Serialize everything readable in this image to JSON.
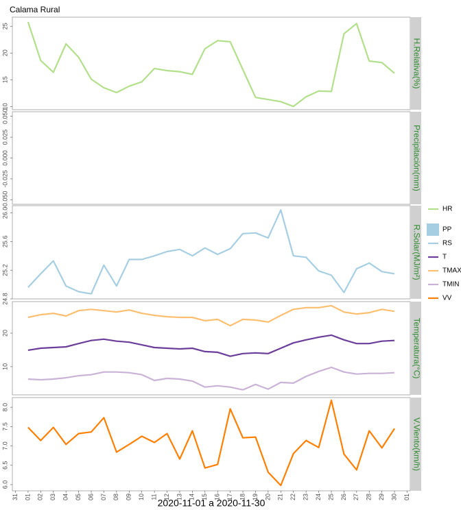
{
  "chart_data": [
    {
      "type": "line",
      "title": "Calama Rural",
      "ylabel": "H.Relativa(%)",
      "ylim": [
        9.4,
        26.7
      ],
      "yticks": [
        10,
        15,
        20,
        25
      ],
      "series": [
        {
          "name": "HR",
          "color": "#b2df8a",
          "values": [
            null,
            25.8,
            18.6,
            16.4,
            21.7,
            19.2,
            15.1,
            13.5,
            12.6,
            13.8,
            14.6,
            17.1,
            16.7,
            16.5,
            16.0,
            20.8,
            22.3,
            22.1,
            16.9,
            11.7,
            11.3,
            10.9,
            10.0,
            11.8,
            12.9,
            12.8,
            23.6,
            25.5,
            18.5,
            18.2,
            16.2,
            null
          ]
        }
      ]
    },
    {
      "type": "bar",
      "ylabel": "Precipitación(mm)",
      "ylim": [
        -0.0555,
        0.0555
      ],
      "yticks": [
        {
          "value": -0.05,
          "label": "-0.050"
        },
        -0.025,
        {
          "value": 0,
          "label": "0.000"
        },
        0.025,
        {
          "value": 0.05,
          "label": "0.050"
        }
      ],
      "series": [
        {
          "name": "PP",
          "color": "#a6cee3",
          "values": [
            null,
            null,
            null,
            null,
            null,
            null,
            null,
            null,
            null,
            null,
            null,
            null,
            null,
            null,
            null,
            null,
            null,
            null,
            null,
            null,
            null,
            null,
            null,
            null,
            null,
            null,
            null,
            null,
            null,
            null,
            null,
            null
          ]
        }
      ]
    },
    {
      "type": "line",
      "ylabel": "R.Solar(MJ/m²)",
      "ylim": [
        24.8,
        26.1
      ],
      "yticks": [
        24.8,
        25.2,
        25.6,
        {
          "value": 26,
          "label": "26.0"
        }
      ],
      "series": [
        {
          "name": "RS",
          "color": "#a6cee3",
          "values": [
            null,
            24.96,
            25.15,
            25.33,
            24.98,
            24.9,
            24.87,
            25.27,
            24.98,
            25.35,
            25.35,
            25.4,
            25.46,
            25.49,
            25.4,
            25.51,
            25.42,
            25.5,
            25.71,
            25.72,
            25.65,
            26.04,
            25.4,
            25.38,
            25.19,
            25.13,
            24.89,
            25.22,
            25.3,
            25.18,
            25.15,
            null
          ]
        }
      ]
    },
    {
      "type": "line",
      "ylabel": "Temperatura(°C)",
      "ylim": [
        1.6,
        29.4
      ],
      "yticks": [
        10,
        20
      ],
      "series": [
        {
          "name": "T",
          "color": "#6a3d9a",
          "values": [
            null,
            14.9,
            15.5,
            15.7,
            15.9,
            16.9,
            17.8,
            18.2,
            17.6,
            17.3,
            16.5,
            15.7,
            15.5,
            15.3,
            15.5,
            14.5,
            14.3,
            13.1,
            13.9,
            14.1,
            13.9,
            15.5,
            17.1,
            18.0,
            18.8,
            19.4,
            18.0,
            16.9,
            16.9,
            17.6,
            17.8,
            null
          ]
        },
        {
          "name": "TMAX",
          "color": "#fdbf6f",
          "values": [
            null,
            24.7,
            25.5,
            25.9,
            25.1,
            26.7,
            27.1,
            26.7,
            26.3,
            26.9,
            25.9,
            25.3,
            24.9,
            24.7,
            24.7,
            23.7,
            24.1,
            22.2,
            24.1,
            23.9,
            23.3,
            25.3,
            27.1,
            27.6,
            27.6,
            28.2,
            26.3,
            25.7,
            26.1,
            27.1,
            26.5,
            null
          ]
        },
        {
          "name": "TMIN",
          "color": "#cab2d6",
          "values": [
            null,
            6.3,
            6.1,
            6.3,
            6.7,
            7.3,
            7.6,
            8.4,
            8.4,
            8.2,
            7.6,
            5.9,
            6.5,
            6.3,
            5.7,
            3.9,
            4.3,
            3.9,
            3.1,
            4.7,
            3.3,
            5.3,
            5.1,
            7.1,
            8.6,
            9.8,
            8.4,
            7.8,
            8.0,
            8.0,
            8.2,
            null
          ]
        }
      ]
    },
    {
      "type": "line",
      "ylabel": "V.Viento(km/h)",
      "xlabel": "2020-11-01 a 2020-11-30",
      "ylim": [
        5.84,
        8.25
      ],
      "yticks": [
        {
          "value": 6,
          "label": "6.0"
        },
        6.5,
        {
          "value": 7,
          "label": "7.0"
        },
        7.5,
        {
          "value": 8,
          "label": "8.0"
        }
      ],
      "categories": [
        "31",
        "01",
        "02",
        "03",
        "04",
        "05",
        "06",
        "07",
        "08",
        "09",
        "10",
        "11",
        "12",
        "13",
        "14",
        "15",
        "16",
        "17",
        "18",
        "19",
        "20",
        "21",
        "22",
        "23",
        "24",
        "25",
        "26",
        "27",
        "28",
        "29",
        "30",
        "01"
      ],
      "series": [
        {
          "name": "VV",
          "color": "#ff7f00",
          "values": [
            null,
            7.48,
            7.14,
            7.48,
            7.04,
            7.32,
            7.36,
            7.73,
            6.84,
            7.04,
            7.25,
            7.09,
            7.32,
            6.66,
            7.39,
            6.43,
            6.52,
            7.96,
            7.21,
            7.23,
            6.32,
            5.98,
            6.8,
            7.14,
            6.96,
            8.18,
            6.79,
            6.38,
            7.39,
            6.95,
            7.45,
            null
          ]
        }
      ]
    }
  ]
}
